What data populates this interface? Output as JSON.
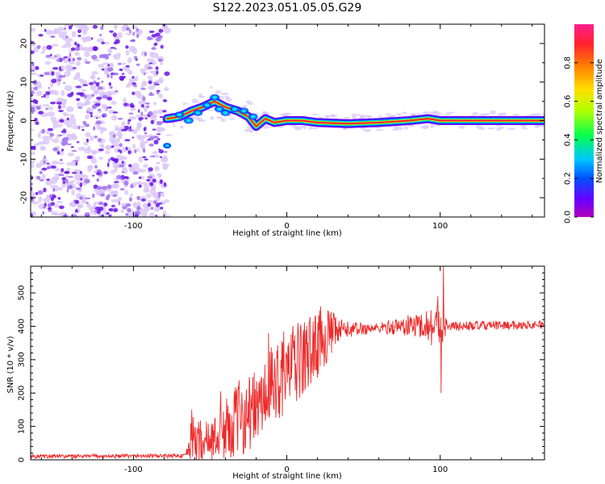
{
  "figure_title": "S122.2023.051.05.05.G29",
  "colors": {
    "snr_line": "#ee2a2a",
    "spectro_scatter_dark": "#6a14e8",
    "spectro_scatter_light": "#d9c6f7",
    "spectro_trace_core": "#ff1e3c"
  },
  "chart_data": [
    {
      "type": "heatmap",
      "title": "",
      "xlabel": "Height of straight line (km)",
      "ylabel": "Frequency (Hz)",
      "xlim": [
        -167,
        168
      ],
      "ylim": [
        -25,
        25
      ],
      "x_ticks": [
        -100,
        0,
        100
      ],
      "y_ticks": [
        -20,
        -10,
        0,
        10,
        20
      ],
      "colorbar": {
        "label": "Normalized spectral amplitude",
        "range": [
          0.0,
          1.0
        ],
        "ticks": [
          "0.0",
          "0.2",
          "0.4",
          "0.6",
          "0.8"
        ],
        "colors": [
          "#b000b8",
          "#6a00ff",
          "#0050ff",
          "#00c8ff",
          "#00ff50",
          "#b0ff00",
          "#ffe000",
          "#ff8000",
          "#ff2030",
          "#ff1e8c"
        ]
      },
      "noise_region_x": [
        -167,
        -78
      ],
      "trace": [
        {
          "x": -78,
          "f": 0.5
        },
        {
          "x": -70,
          "f": 1.0
        },
        {
          "x": -62,
          "f": 2.5
        },
        {
          "x": -55,
          "f": 3.5
        },
        {
          "x": -47,
          "f": 5.0
        },
        {
          "x": -40,
          "f": 3.5
        },
        {
          "x": -32,
          "f": 2.5
        },
        {
          "x": -25,
          "f": 1.0
        },
        {
          "x": -20,
          "f": -1.5
        },
        {
          "x": -14,
          "f": 0.5
        },
        {
          "x": -8,
          "f": -0.5
        },
        {
          "x": 0,
          "f": 0.0
        },
        {
          "x": 10,
          "f": 0.0
        },
        {
          "x": 20,
          "f": -0.5
        },
        {
          "x": 40,
          "f": -0.8
        },
        {
          "x": 60,
          "f": -0.5
        },
        {
          "x": 80,
          "f": 0.0
        },
        {
          "x": 92,
          "f": 0.5
        },
        {
          "x": 100,
          "f": 0.0
        },
        {
          "x": 120,
          "f": 0.0
        },
        {
          "x": 150,
          "f": 0.0
        },
        {
          "x": 168,
          "f": 0.0
        }
      ],
      "outlier_blob": {
        "x": -78,
        "f": -6.5
      }
    },
    {
      "type": "line",
      "title": "",
      "xlabel": "Height of straight line (km)",
      "ylabel": "SNR (10 * v/v)",
      "xlim": [
        -167,
        168
      ],
      "ylim": [
        0,
        580
      ],
      "x_ticks": [
        -100,
        0,
        100
      ],
      "y_ticks": [
        0,
        100,
        200,
        300,
        400,
        500
      ],
      "series": [
        {
          "envelope": [
            {
              "x": -167,
              "mean": 10,
              "amp": 6
            },
            {
              "x": -66,
              "mean": 12,
              "amp": 6
            },
            {
              "x": -62,
              "mean": 60,
              "amp": 70
            },
            {
              "x": -50,
              "mean": 55,
              "amp": 60
            },
            {
              "x": -40,
              "mean": 90,
              "amp": 90
            },
            {
              "x": -30,
              "mean": 130,
              "amp": 120
            },
            {
              "x": -18,
              "mean": 160,
              "amp": 110
            },
            {
              "x": -5,
              "mean": 250,
              "amp": 130
            },
            {
              "x": 10,
              "mean": 300,
              "amp": 120
            },
            {
              "x": 25,
              "mean": 370,
              "amp": 90
            },
            {
              "x": 38,
              "mean": 390,
              "amp": 25
            },
            {
              "x": 60,
              "mean": 395,
              "amp": 15
            },
            {
              "x": 75,
              "mean": 400,
              "amp": 30
            },
            {
              "x": 90,
              "mean": 405,
              "amp": 40
            },
            {
              "x": 98,
              "mean": 400,
              "amp": 80
            },
            {
              "x": 105,
              "mean": 400,
              "amp": 15
            },
            {
              "x": 168,
              "mean": 405,
              "amp": 12
            }
          ],
          "spikes": [
            {
              "x": 100.5,
              "y": 200
            },
            {
              "x": 102,
              "y": 580
            },
            {
              "x": 98.5,
              "y": 490
            },
            {
              "x": -43,
              "y": 205
            },
            {
              "x": -12,
              "y": 380
            },
            {
              "x": 22,
              "y": 460
            },
            {
              "x": -62,
              "y": 150
            }
          ]
        }
      ]
    }
  ]
}
